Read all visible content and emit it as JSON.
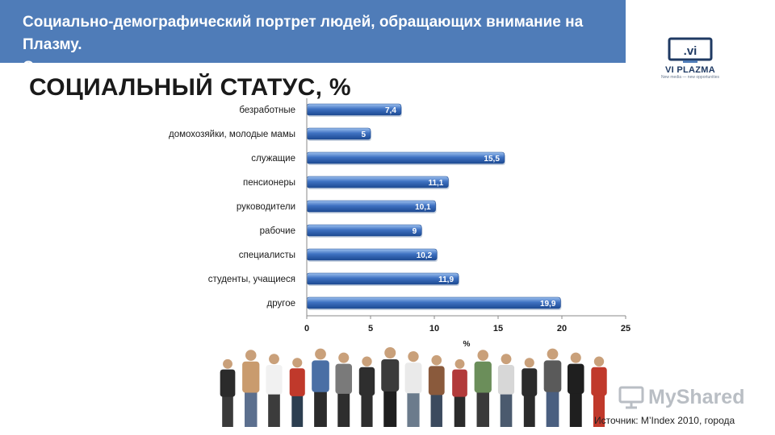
{
  "header": {
    "title_line1": "Социально-демографический портрет людей, обращающих внимание на Плазму.",
    "title_line2": "Самара"
  },
  "logo": {
    "name": "VI PLAZMA",
    "tagline": "New media — new opportunities"
  },
  "section_title": "СОЦИАЛЬНЫЙ СТАТУС, %",
  "chart_data": {
    "type": "bar",
    "orientation": "horizontal",
    "categories": [
      "безработные",
      "домохозяйки, молодые мамы",
      "служащие",
      "пенсионеры",
      "руководители",
      "рабочие",
      "специалисты",
      "студенты, учащиеся",
      "другое"
    ],
    "values": [
      7.4,
      5,
      15.5,
      11.1,
      10.1,
      9,
      10.2,
      11.9,
      19.9
    ],
    "value_labels": [
      "7,4",
      "5",
      "15,5",
      "11,1",
      "10,1",
      "9",
      "10,2",
      "11,9",
      "19,9"
    ],
    "xlabel": "%",
    "xlim": [
      0,
      25
    ],
    "xticks": [
      0,
      5,
      10,
      15,
      20,
      25
    ],
    "grid": false,
    "bar_color": "#3f72c2"
  },
  "watermark": "MyShared",
  "source": "Источник: M’Index 2010, города"
}
